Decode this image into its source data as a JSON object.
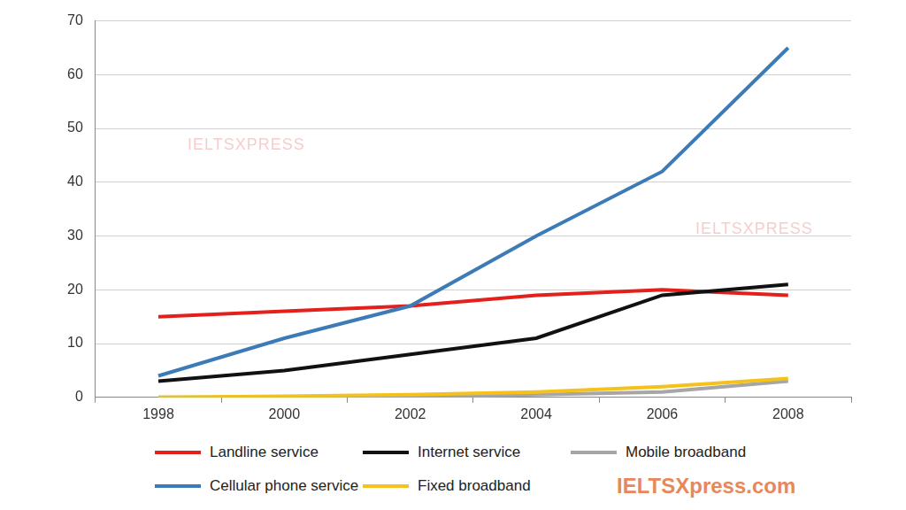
{
  "chart_data": {
    "type": "line",
    "categories": [
      "1998",
      "2000",
      "2002",
      "2004",
      "2006",
      "2008"
    ],
    "series": [
      {
        "name": "Landline service",
        "color": "#e3201b",
        "values": [
          15,
          16,
          17,
          19,
          20,
          19
        ]
      },
      {
        "name": "Internet service",
        "color": "#111111",
        "values": [
          3,
          5,
          8,
          11,
          19,
          21
        ]
      },
      {
        "name": "Mobile broadband",
        "color": "#a6a6a6",
        "values": [
          0,
          0,
          0,
          0.5,
          1,
          3
        ]
      },
      {
        "name": "Cellular phone service",
        "color": "#3c7bb6",
        "values": [
          4,
          11,
          17,
          30,
          42,
          65
        ]
      },
      {
        "name": "Fixed broadband",
        "color": "#f4c21b",
        "values": [
          0,
          0.2,
          0.5,
          1,
          2,
          3.5
        ]
      }
    ],
    "ylim": [
      0,
      70
    ],
    "yticks": [
      0,
      10,
      20,
      30,
      40,
      50,
      60,
      70
    ],
    "grid": true,
    "legend": "bottom",
    "annotations": [
      "IELTSXPRESS",
      "IELTSXPRESS",
      "IELTSXpress.com"
    ]
  }
}
